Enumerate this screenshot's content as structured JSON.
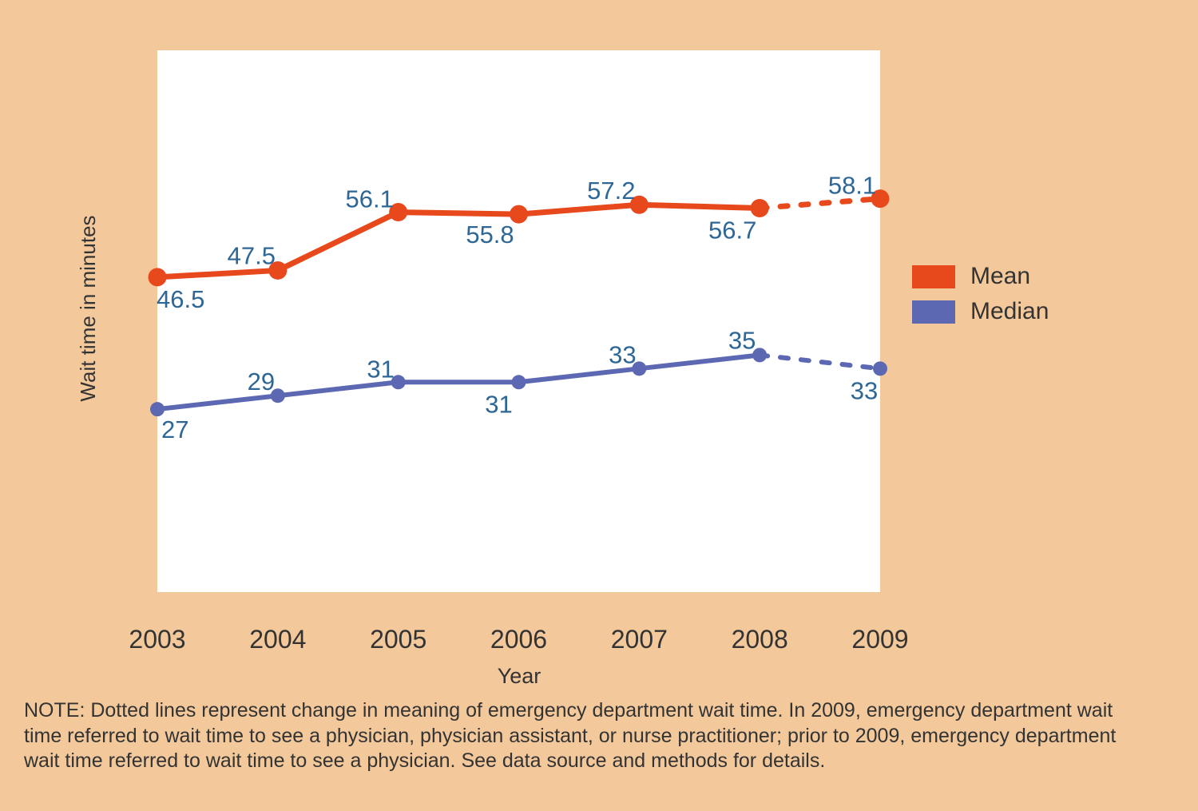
{
  "chart_data": {
    "type": "line",
    "x": [
      "2003",
      "2004",
      "2005",
      "2006",
      "2007",
      "2008",
      "2009"
    ],
    "xlabel": "Year",
    "ylabel": "Wait time in minutes",
    "ylim": [
      0,
      80
    ],
    "grid": false,
    "legend_position": "right",
    "series": [
      {
        "name": "Mean",
        "color": "#e8491c",
        "values": [
          46.5,
          47.5,
          56.1,
          55.8,
          57.2,
          56.7,
          58.1
        ],
        "point_labels": [
          "46.5",
          "47.5",
          "56.1",
          "55.8",
          "57.2",
          "56.7",
          "58.1"
        ],
        "dashed_segment": [
          "2008",
          "2009"
        ]
      },
      {
        "name": "Median",
        "color": "#5c68b2",
        "values": [
          27,
          29,
          31,
          31,
          33,
          35,
          33
        ],
        "point_labels": [
          "27",
          "29",
          "31",
          "31",
          "33",
          "35",
          "33"
        ],
        "dashed_segment": [
          "2008",
          "2009"
        ]
      }
    ]
  },
  "note": {
    "lines": [
      "NOTE: Dotted lines represent change in meaning of emergency department wait time. In 2009, emergency department wait",
      "time referred to wait time to see a physician, physician assistant, or nurse practitioner; prior to 2009, emergency department",
      "wait time referred to wait time to see a physician. See data source and methods for details."
    ]
  },
  "colors": {
    "background": "#f3c89b",
    "plot_background": "#ffffff",
    "data_label": "#2e6695",
    "text": "#333333",
    "mean": "#e8491c",
    "median": "#5c68b2"
  }
}
